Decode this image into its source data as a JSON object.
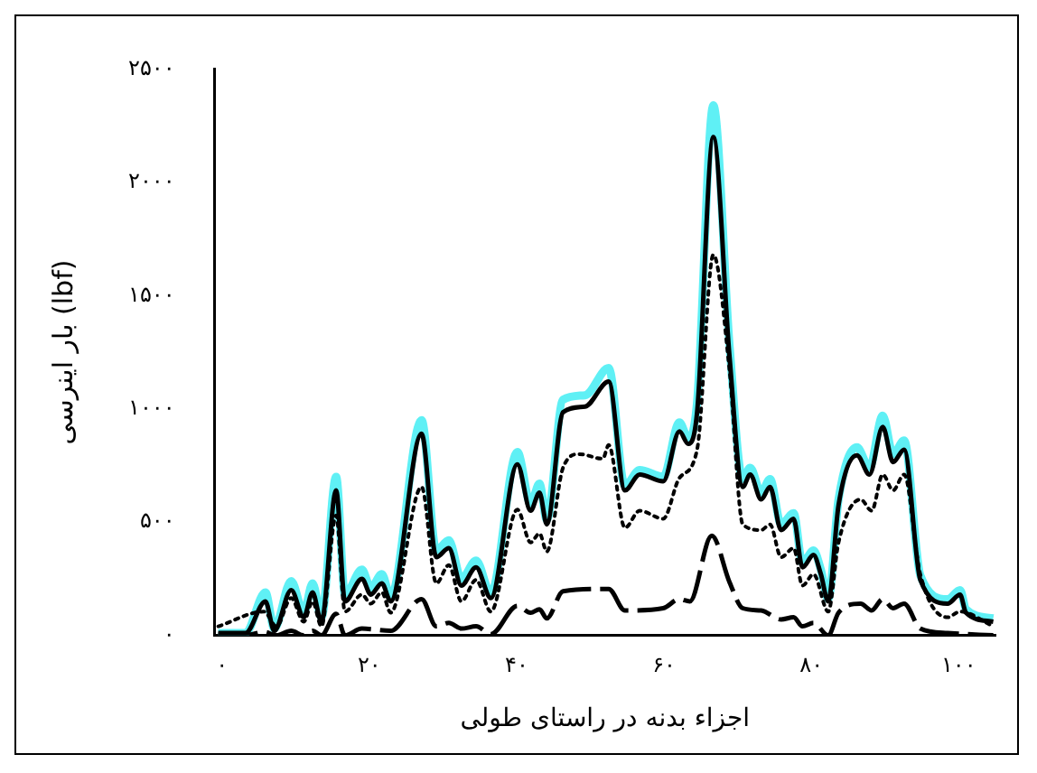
{
  "chart_data": {
    "type": "line",
    "xlabel": "اجزاء بدنه در راستای طولی",
    "ylabel": "بار اینرسی (lbf)",
    "xlim": [
      -1,
      105
    ],
    "xticks": [
      {
        "value": 0,
        "label": "۰"
      },
      {
        "value": 20,
        "label": "۲۰"
      },
      {
        "value": 40,
        "label": "۴۰"
      },
      {
        "value": 60,
        "label": "۶۰"
      },
      {
        "value": 80,
        "label": "۸۰"
      },
      {
        "value": 100,
        "label": "۱۰۰"
      }
    ],
    "ylim": [
      0,
      2500
    ],
    "yticks": [
      {
        "value": 0,
        "label": "۰"
      },
      {
        "value": 500,
        "label": "۵۰۰"
      },
      {
        "value": 1000,
        "label": "۱۰۰۰"
      },
      {
        "value": 1500,
        "label": "۱۵۰۰"
      },
      {
        "value": 2000,
        "label": "۲۰۰۰"
      },
      {
        "value": 2500,
        "label": "۲۵۰۰"
      }
    ],
    "grid": false,
    "legend": false,
    "marker": "none",
    "series": [
      {
        "color": "#5ff0f5",
        "line_style": "solid",
        "x": [
          -0.5,
          3.2,
          5.9,
          7.1,
          9.4,
          11.1,
          12.3,
          13.5,
          15.5,
          16.7,
          19,
          20.2,
          21.7,
          22.9,
          27.1,
          29.1,
          30.8,
          32.5,
          34.5,
          36.5,
          40.1,
          41.9,
          43.1,
          44.1,
          46.3,
          49.3,
          52.5,
          54.7,
          56.7,
          59.9,
          62.1,
          63.3,
          64.5,
          66.7,
          68.9,
          70.7,
          71.7,
          73.2,
          74.4,
          75.9,
          77.6,
          78.8,
          80.3,
          81.3,
          82.3,
          83.7,
          86.2,
          87.9,
          89.7,
          91.1,
          92.6,
          94.8,
          98.5,
          100.2,
          101,
          104.7
        ],
        "values": [
          10,
          10,
          190,
          30,
          240,
          100,
          230,
          80,
          700,
          180,
          290,
          210,
          270,
          170,
          950,
          375,
          420,
          250,
          330,
          185,
          810,
          580,
          670,
          510,
          1040,
          1060,
          1180,
          660,
          730,
          700,
          940,
          870,
          1030,
          2340,
          1280,
          690,
          740,
          630,
          690,
          490,
          540,
          320,
          375,
          290,
          160,
          600,
          830,
          740,
          970,
          800,
          860,
          265,
          160,
          200,
          115,
          75
        ]
      },
      {
        "color": "#000000",
        "line_style": "solid",
        "x": [
          -0.5,
          3.2,
          5.9,
          7.1,
          9.4,
          11.1,
          12.3,
          13.5,
          15.5,
          16.7,
          19,
          20.2,
          21.7,
          22.9,
          27.1,
          29.1,
          30.8,
          32.5,
          34.5,
          36.5,
          40.1,
          41.9,
          43.1,
          44.1,
          46.3,
          49.3,
          52.5,
          54.7,
          56.7,
          59.9,
          62.1,
          63.3,
          64.5,
          66.7,
          68.9,
          70.7,
          71.7,
          73.2,
          74.4,
          75.9,
          77.6,
          78.8,
          80.3,
          81.3,
          82.3,
          83.7,
          86.2,
          87.9,
          89.7,
          91.1,
          92.6,
          94.8,
          98.5,
          100.2,
          101,
          104.7
        ],
        "values": [
          10,
          10,
          150,
          20,
          200,
          80,
          190,
          60,
          640,
          150,
          250,
          180,
          230,
          150,
          890,
          345,
          385,
          220,
          300,
          165,
          755,
          550,
          630,
          490,
          985,
          1010,
          1120,
          640,
          710,
          680,
          900,
          845,
          985,
          2200,
          1230,
          655,
          710,
          600,
          655,
          465,
          515,
          300,
          355,
          270,
          150,
          575,
          795,
          710,
          920,
          765,
          820,
          245,
          140,
          180,
          100,
          60
        ]
      },
      {
        "color": "#000000",
        "line_style": "dotted",
        "x": [
          -0.5,
          5.7,
          7.4,
          9.4,
          11.1,
          12.3,
          13.5,
          15.5,
          16.7,
          19,
          20.2,
          21.7,
          22.9,
          27.1,
          29.1,
          30.8,
          32.5,
          34.5,
          36.5,
          40.1,
          41.9,
          43.1,
          44.1,
          46.3,
          48.5,
          51.7,
          52.5,
          54.7,
          56.7,
          59.9,
          62.1,
          64.5,
          66.7,
          68.9,
          70.7,
          73.2,
          74.4,
          75.9,
          77.6,
          78.8,
          80.3,
          82.3,
          83.7,
          86.7,
          88.2,
          89.7,
          91.1,
          92.6,
          94.8,
          98.5,
          100.2,
          104.7
        ],
        "values": [
          40,
          105,
          40,
          165,
          60,
          150,
          40,
          530,
          105,
          180,
          140,
          190,
          100,
          655,
          230,
          310,
          150,
          245,
          105,
          555,
          410,
          450,
          370,
          740,
          800,
          780,
          840,
          475,
          550,
          515,
          695,
          820,
          1680,
          1170,
          490,
          465,
          490,
          345,
          385,
          220,
          270,
          105,
          410,
          600,
          550,
          710,
          640,
          710,
          270,
          80,
          105,
          40
        ]
      },
      {
        "color": "#000000",
        "line_style": "dashed",
        "x": [
          -0.5,
          3.2,
          5.7,
          7.4,
          9.4,
          11.1,
          12.3,
          13.5,
          15.5,
          16.7,
          19,
          22.9,
          27.1,
          29.1,
          30.8,
          32.5,
          34.5,
          36.5,
          40.1,
          41.9,
          43.1,
          44.1,
          46.3,
          52.5,
          54.7,
          59.9,
          62.1,
          63.5,
          66.5,
          68.9,
          70.7,
          73.2,
          75.9,
          77.6,
          78.8,
          80.3,
          82.3,
          83.7,
          86.7,
          88.2,
          89.7,
          91.1,
          92.6,
          94.8,
          98.5,
          104.7
        ],
        "values": [
          5,
          0,
          15,
          0,
          20,
          0,
          20,
          0,
          95,
          0,
          30,
          20,
          160,
          40,
          55,
          30,
          40,
          5,
          130,
          100,
          115,
          75,
          195,
          205,
          110,
          120,
          160,
          150,
          440,
          235,
          120,
          110,
          70,
          80,
          40,
          55,
          0,
          100,
          140,
          110,
          160,
          120,
          140,
          30,
          10,
          0
        ]
      }
    ]
  }
}
